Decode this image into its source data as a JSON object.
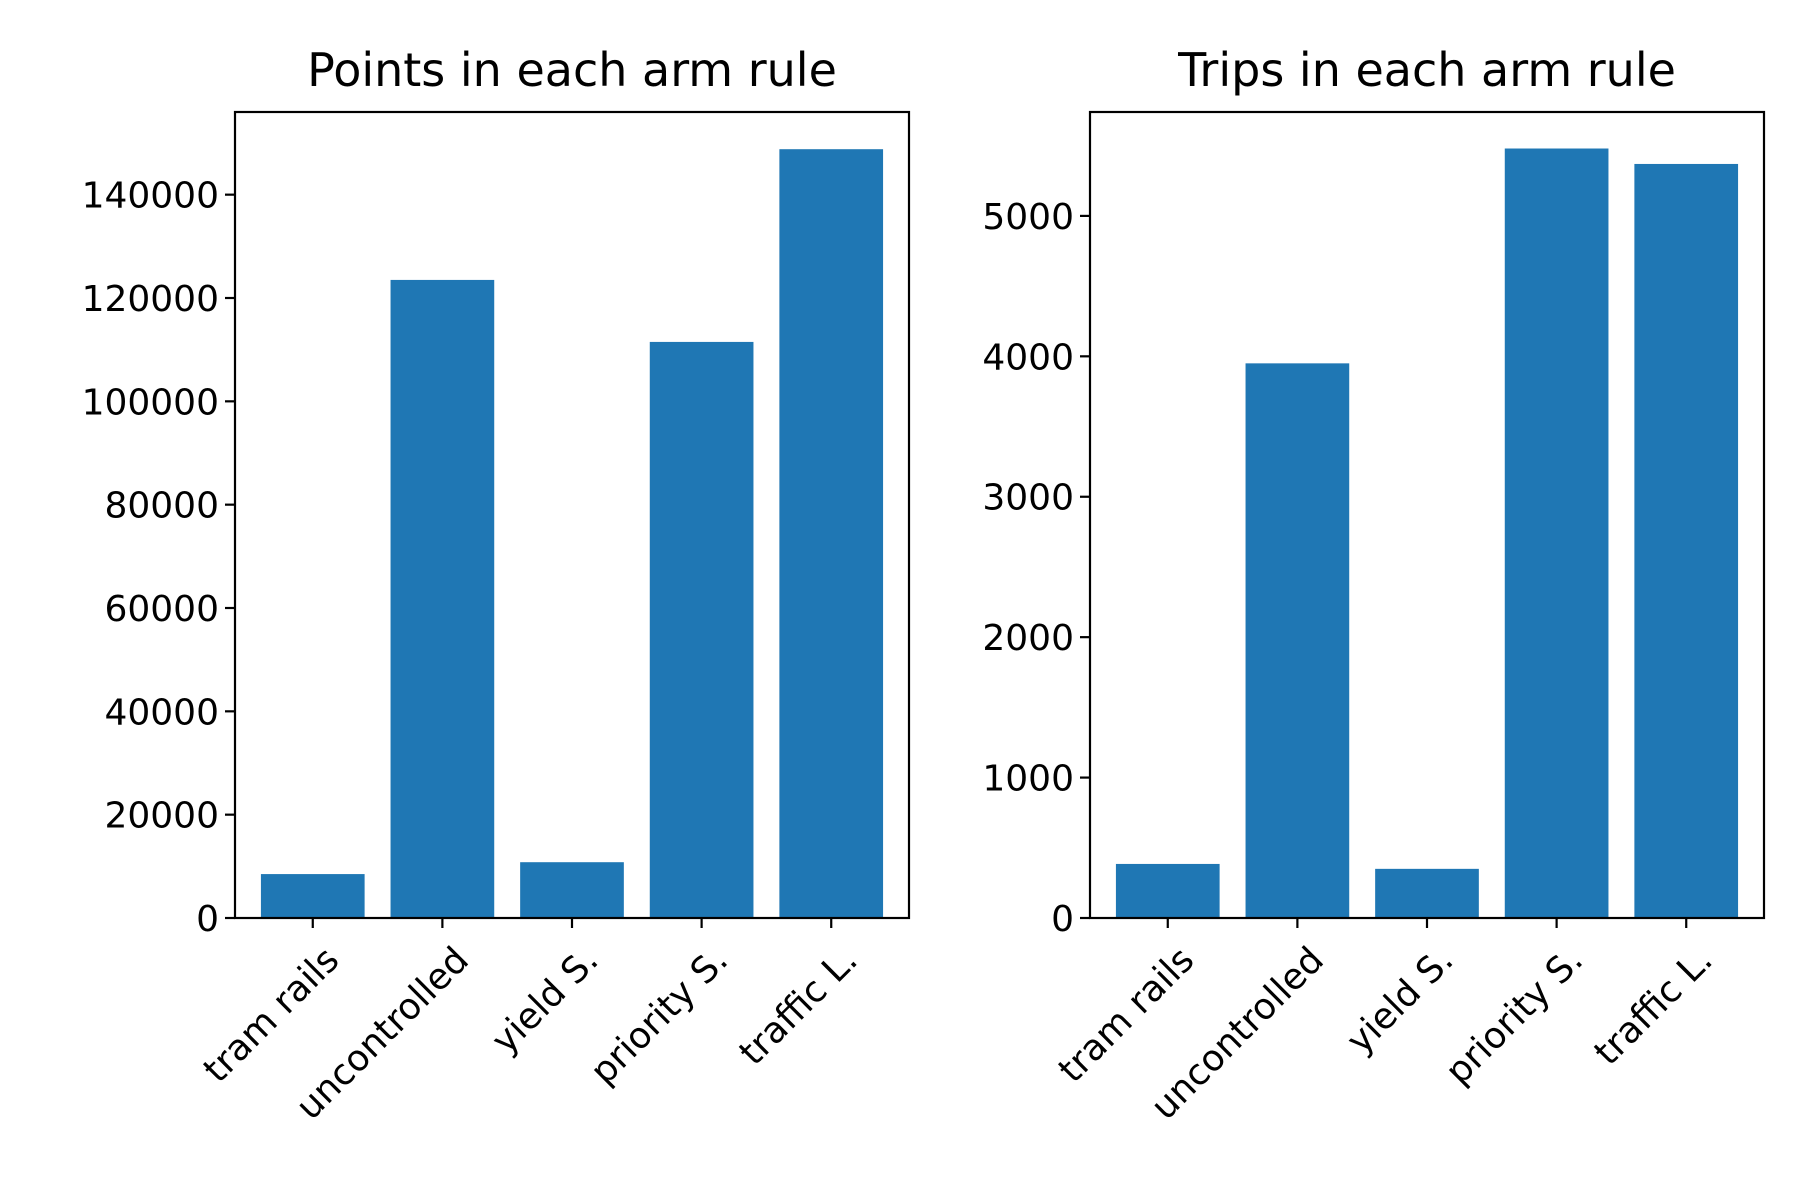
{
  "chart_data": [
    {
      "type": "bar",
      "title": "Points in each arm rule",
      "xlabel": "",
      "ylabel": "",
      "categories": [
        "tram rails",
        "uncontrolled",
        "yield S.",
        "priority S.",
        "traffic L."
      ],
      "values": [
        8500,
        123500,
        10800,
        111500,
        148800
      ],
      "ylim": [
        0,
        156000
      ],
      "yticks": [
        0,
        20000,
        40000,
        60000,
        80000,
        100000,
        120000,
        140000
      ],
      "ytick_labels": [
        "0",
        "20000",
        "40000",
        "60000",
        "80000",
        "100000",
        "120000",
        "140000"
      ],
      "bar_color": "#1f77b4",
      "grid": false,
      "legend": "none"
    },
    {
      "type": "bar",
      "title": "Trips in each arm rule",
      "xlabel": "",
      "ylabel": "",
      "categories": [
        "tram rails",
        "uncontrolled",
        "yield S.",
        "priority S.",
        "traffic L."
      ],
      "values": [
        385,
        3950,
        350,
        5480,
        5370
      ],
      "ylim": [
        0,
        5740
      ],
      "yticks": [
        0,
        1000,
        2000,
        3000,
        4000,
        5000
      ],
      "ytick_labels": [
        "0",
        "1000",
        "2000",
        "3000",
        "4000",
        "5000"
      ],
      "bar_color": "#1f77b4",
      "grid": false,
      "legend": "none"
    }
  ]
}
